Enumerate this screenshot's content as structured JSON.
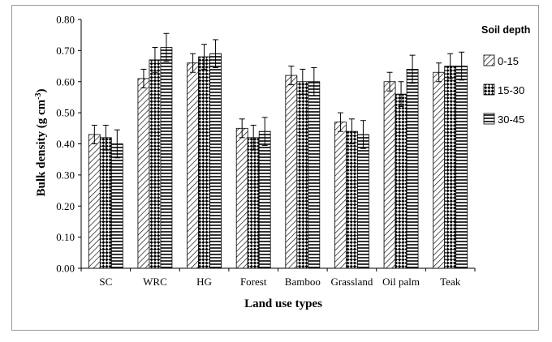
{
  "chart_data": {
    "type": "bar",
    "xlabel": "Land use types",
    "ylabel_main": "Bulk density (g cm",
    "ylabel_sup": "-3",
    "ylabel_close": ")",
    "ylim": [
      0,
      0.8
    ],
    "yticks": [
      "0.00",
      "0.10",
      "0.20",
      "0.30",
      "0.40",
      "0.50",
      "0.60",
      "0.70",
      "0.80"
    ],
    "ytick_values": [
      0,
      0.1,
      0.2,
      0.3,
      0.4,
      0.5,
      0.6,
      0.7,
      0.8
    ],
    "categories": [
      "SC",
      "WRC",
      "HG",
      "Forest",
      "Bamboo",
      "Grassland",
      "Oil palm",
      "Teak"
    ],
    "legend_title": "Soil depth",
    "legend_position": "right",
    "grid": false,
    "series": [
      {
        "name": "0-15",
        "pattern": "diagonal",
        "values": [
          0.43,
          0.61,
          0.66,
          0.45,
          0.62,
          0.47,
          0.6,
          0.63
        ],
        "errors": [
          0.03,
          0.03,
          0.03,
          0.03,
          0.03,
          0.03,
          0.03,
          0.03
        ]
      },
      {
        "name": "15-30",
        "pattern": "checker",
        "values": [
          0.42,
          0.67,
          0.68,
          0.42,
          0.6,
          0.44,
          0.56,
          0.65
        ],
        "errors": [
          0.04,
          0.04,
          0.04,
          0.04,
          0.04,
          0.04,
          0.04,
          0.04
        ]
      },
      {
        "name": "30-45",
        "pattern": "horizontal",
        "values": [
          0.4,
          0.71,
          0.69,
          0.44,
          0.6,
          0.43,
          0.64,
          0.65
        ],
        "errors": [
          0.045,
          0.045,
          0.045,
          0.045,
          0.045,
          0.045,
          0.045,
          0.045
        ]
      }
    ]
  }
}
